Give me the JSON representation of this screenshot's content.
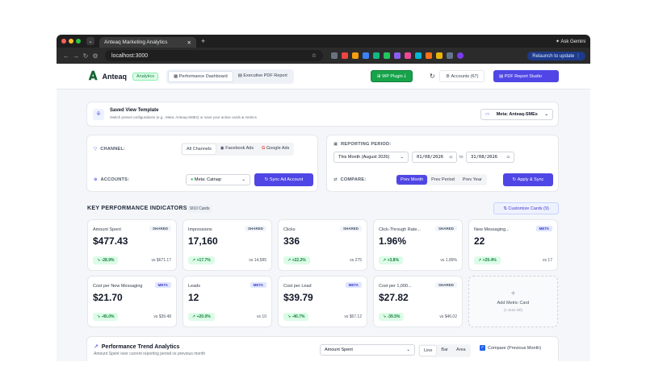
{
  "browser": {
    "tab_title": "Anteaq Marketing Analytics",
    "new_tab_icon": "+",
    "ask_gemini": "Ask Gemini",
    "url": "localhost:3000",
    "relaunch": "Relaunch to update"
  },
  "header": {
    "brand": "Anteaq",
    "badge": "Analytics",
    "tabs": [
      {
        "label": "Performance Dashboard"
      },
      {
        "label": "Executive PDF Report"
      }
    ],
    "wp_plugin": "WP Plugin",
    "accounts": "Accounts (67)",
    "pdf_studio": "PDF Report Studio",
    "colors": {
      "accent": "#4f46e5",
      "green": "#16a34a"
    }
  },
  "saved_view": {
    "title": "Saved View Template",
    "subtitle": "Switch preset configurations (e.g., Meta: Anteaq-SMEs) or save your active cards & metrics",
    "selected": "Meta: Anteaq-SMEs"
  },
  "filters": {
    "channel_label": "CHANNEL:",
    "channels": [
      "All Channels",
      "Facebook Ads",
      "Google Ads"
    ],
    "accounts_label": "ACCOUNTS:",
    "account_selected": "Meta: Catnap",
    "sync_btn": "Sync Ad Account",
    "period_label": "REPORTING PERIOD:",
    "period_selected": "This Month (August 2026)",
    "date_from": "01/08/2026",
    "date_to": "31/08/2026",
    "date_sep": "to",
    "compare_label": "COMPARE:",
    "compare_options": [
      "Prev Month",
      "Prev Period",
      "Prev Year"
    ],
    "apply_btn": "Apply & Sync"
  },
  "kpi_section": {
    "title": "KEY PERFORMANCE INDICATORS",
    "count": "9/10 Cards",
    "customize": "Customize Cards (9)",
    "cards": [
      {
        "name": "Amount Spent",
        "tag": "SHARED",
        "value": "$477.43",
        "change": "-28.9%",
        "vs": "vs $671.17"
      },
      {
        "name": "Impressions",
        "tag": "SHARED",
        "value": "17,160",
        "change": "+17.7%",
        "vs": "vs 14,585"
      },
      {
        "name": "Clicks",
        "tag": "SHARED",
        "value": "336",
        "change": "+22.2%",
        "vs": "vs 275"
      },
      {
        "name": "Click-Through Rate...",
        "tag": "SHARED",
        "value": "1.96%",
        "change": "+3.8%",
        "vs": "vs 1.89%"
      },
      {
        "name": "New Messaging...",
        "tag": "META",
        "value": "22",
        "change": "+29.4%",
        "vs": "vs 17"
      },
      {
        "name": "Cost per New Messaging",
        "tag": "META",
        "value": "$21.70",
        "change": "-45.0%",
        "vs": "vs $39.48"
      },
      {
        "name": "Leads",
        "tag": "META",
        "value": "12",
        "change": "+20.0%",
        "vs": "vs 10"
      },
      {
        "name": "Cost per Lead",
        "tag": "META",
        "value": "$39.79",
        "change": "-40.7%",
        "vs": "vs $67.12"
      },
      {
        "name": "Cost per 1,000...",
        "tag": "SHARED",
        "value": "$27.82",
        "change": "-39.5%",
        "vs": "vs $46.02"
      }
    ],
    "add_card": {
      "plus": "+",
      "label": "Add Metric Card",
      "sub": "(1 slots left)"
    }
  },
  "trend": {
    "title": "Performance Trend Analytics",
    "subtitle": "Amount Spent over current reporting period vs previous month",
    "metric": "Amount Spent",
    "chart_types": [
      "Line",
      "Bar",
      "Area"
    ],
    "compare": "Compare (Previous Month)"
  }
}
